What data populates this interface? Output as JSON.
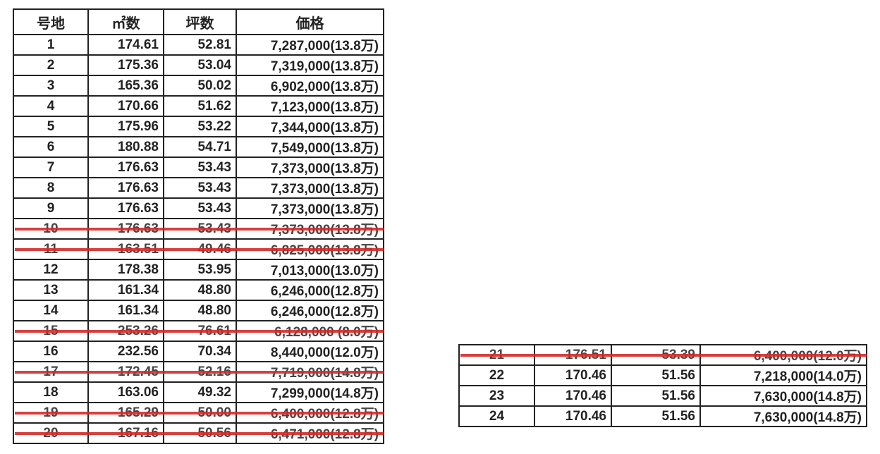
{
  "headers": [
    "号地",
    "㎡数",
    "坪数",
    "価格"
  ],
  "strike_color": "#d42a2a",
  "table_left": [
    {
      "no": "1",
      "sqm": "174.61",
      "tsubo": "52.81",
      "price": "7,287,000(13.8万)",
      "struck": false
    },
    {
      "no": "2",
      "sqm": "175.36",
      "tsubo": "53.04",
      "price": "7,319,000(13.8万)",
      "struck": false
    },
    {
      "no": "3",
      "sqm": "165.36",
      "tsubo": "50.02",
      "price": "6,902,000(13.8万)",
      "struck": false
    },
    {
      "no": "4",
      "sqm": "170.66",
      "tsubo": "51.62",
      "price": "7,123,000(13.8万)",
      "struck": false
    },
    {
      "no": "5",
      "sqm": "175.96",
      "tsubo": "53.22",
      "price": "7,344,000(13.8万)",
      "struck": false
    },
    {
      "no": "6",
      "sqm": "180.88",
      "tsubo": "54.71",
      "price": "7,549,000(13.8万)",
      "struck": false
    },
    {
      "no": "7",
      "sqm": "176.63",
      "tsubo": "53.43",
      "price": "7,373,000(13.8万)",
      "struck": false
    },
    {
      "no": "8",
      "sqm": "176.63",
      "tsubo": "53.43",
      "price": "7,373,000(13.8万)",
      "struck": false
    },
    {
      "no": "9",
      "sqm": "176.63",
      "tsubo": "53.43",
      "price": "7,373,000(13.8万)",
      "struck": false
    },
    {
      "no": "10",
      "sqm": "176.63",
      "tsubo": "53.43",
      "price": "7,373,000(13.8万)",
      "struck": true
    },
    {
      "no": "11",
      "sqm": "163.51",
      "tsubo": "49.46",
      "price": "6,825,000(13.8万)",
      "struck": true
    },
    {
      "no": "12",
      "sqm": "178.38",
      "tsubo": "53.95",
      "price": "7,013,000(13.0万)",
      "struck": false
    },
    {
      "no": "13",
      "sqm": "161.34",
      "tsubo": "48.80",
      "price": "6,246,000(12.8万)",
      "struck": false
    },
    {
      "no": "14",
      "sqm": "161.34",
      "tsubo": "48.80",
      "price": "6,246,000(12.8万)",
      "struck": false
    },
    {
      "no": "15",
      "sqm": "253.26",
      "tsubo": "76.61",
      "price": "6,128,000 (8.0万)",
      "struck": true
    },
    {
      "no": "16",
      "sqm": "232.56",
      "tsubo": "70.34",
      "price": "8,440,000(12.0万)",
      "struck": false
    },
    {
      "no": "17",
      "sqm": "172.45",
      "tsubo": "52.16",
      "price": "7,719,000(14.8万)",
      "struck": true
    },
    {
      "no": "18",
      "sqm": "163.06",
      "tsubo": "49.32",
      "price": "7,299,000(14.8万)",
      "struck": false
    },
    {
      "no": "19",
      "sqm": "165.29",
      "tsubo": "50.00",
      "price": "6,400,000(12.8万)",
      "struck": true
    },
    {
      "no": "20",
      "sqm": "167.16",
      "tsubo": "50.56",
      "price": "6,471,000(12.8万)",
      "struck": true
    }
  ],
  "table_right": [
    {
      "no": "21",
      "sqm": "176.51",
      "tsubo": "53.39",
      "price": "6,400,000(12.0万)",
      "struck": true
    },
    {
      "no": "22",
      "sqm": "170.46",
      "tsubo": "51.56",
      "price": "7,218,000(14.0万)",
      "struck": false
    },
    {
      "no": "23",
      "sqm": "170.46",
      "tsubo": "51.56",
      "price": "7,630,000(14.8万)",
      "struck": false
    },
    {
      "no": "24",
      "sqm": "170.46",
      "tsubo": "51.56",
      "price": "7,630,000(14.8万)",
      "struck": false
    }
  ]
}
